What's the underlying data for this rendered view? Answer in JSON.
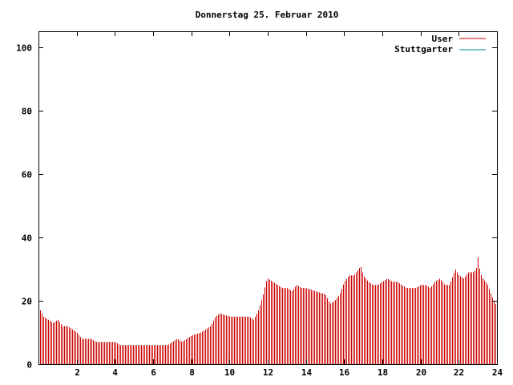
{
  "chart_data": {
    "type": "bar",
    "title": "Donnerstag 25. Februar 2010",
    "xlabel": "",
    "ylabel": "",
    "xlim": [
      0,
      24
    ],
    "ylim": [
      0,
      105
    ],
    "x_ticks": [
      2,
      4,
      6,
      8,
      10,
      12,
      14,
      16,
      18,
      20,
      22,
      24
    ],
    "x_tick_labels": [
      "2",
      "4",
      "6",
      "8",
      "10",
      "12",
      "14",
      "16",
      "18",
      "20",
      "22",
      "24"
    ],
    "y_ticks": [
      0,
      20,
      40,
      60,
      80,
      100
    ],
    "y_tick_labels": [
      "0",
      "20",
      "40",
      "60",
      "80",
      "100"
    ],
    "grid": false,
    "legend_position": "top-right",
    "series": [
      {
        "name": "User",
        "color": "#cc0000",
        "style": "impulses",
        "points": [
          [
            0.0,
            18
          ],
          [
            0.25,
            15
          ],
          [
            0.5,
            14
          ],
          [
            0.75,
            13
          ],
          [
            1.0,
            14
          ],
          [
            1.25,
            12
          ],
          [
            1.5,
            12
          ],
          [
            1.75,
            11
          ],
          [
            2.0,
            10
          ],
          [
            2.25,
            8
          ],
          [
            2.5,
            8
          ],
          [
            2.75,
            8
          ],
          [
            3.0,
            7
          ],
          [
            3.5,
            7
          ],
          [
            4.0,
            7
          ],
          [
            4.25,
            6
          ],
          [
            5.0,
            6
          ],
          [
            6.0,
            6
          ],
          [
            6.75,
            6
          ],
          [
            7.0,
            7
          ],
          [
            7.25,
            8
          ],
          [
            7.5,
            7
          ],
          [
            7.75,
            8
          ],
          [
            8.0,
            9
          ],
          [
            8.5,
            10
          ],
          [
            9.0,
            12
          ],
          [
            9.25,
            15
          ],
          [
            9.5,
            16
          ],
          [
            10.0,
            15
          ],
          [
            10.5,
            15
          ],
          [
            11.0,
            15
          ],
          [
            11.25,
            14
          ],
          [
            11.5,
            17
          ],
          [
            11.75,
            22
          ],
          [
            11.9,
            26
          ],
          [
            12.0,
            27
          ],
          [
            12.25,
            26
          ],
          [
            12.5,
            25
          ],
          [
            12.75,
            24
          ],
          [
            13.0,
            24
          ],
          [
            13.25,
            23
          ],
          [
            13.5,
            25
          ],
          [
            13.75,
            24
          ],
          [
            14.0,
            24
          ],
          [
            14.5,
            23
          ],
          [
            15.0,
            22
          ],
          [
            15.25,
            19
          ],
          [
            15.5,
            20
          ],
          [
            15.75,
            22
          ],
          [
            16.0,
            26
          ],
          [
            16.25,
            28
          ],
          [
            16.5,
            28
          ],
          [
            16.75,
            30
          ],
          [
            16.85,
            31
          ],
          [
            17.0,
            28
          ],
          [
            17.25,
            26
          ],
          [
            17.5,
            25
          ],
          [
            17.75,
            25
          ],
          [
            18.0,
            26
          ],
          [
            18.25,
            27
          ],
          [
            18.5,
            26
          ],
          [
            18.75,
            26
          ],
          [
            19.0,
            25
          ],
          [
            19.25,
            24
          ],
          [
            19.5,
            24
          ],
          [
            19.75,
            24
          ],
          [
            20.0,
            25
          ],
          [
            20.25,
            25
          ],
          [
            20.5,
            24
          ],
          [
            20.75,
            26
          ],
          [
            21.0,
            27
          ],
          [
            21.25,
            25
          ],
          [
            21.5,
            25
          ],
          [
            21.75,
            29
          ],
          [
            21.8,
            30
          ],
          [
            22.0,
            28
          ],
          [
            22.25,
            27
          ],
          [
            22.5,
            29
          ],
          [
            22.75,
            29
          ],
          [
            22.9,
            30
          ],
          [
            23.0,
            34
          ],
          [
            23.1,
            29
          ],
          [
            23.25,
            27
          ],
          [
            23.5,
            25
          ],
          [
            23.75,
            21
          ],
          [
            24.0,
            18
          ]
        ]
      },
      {
        "name": "Stuttgarter",
        "color": "#008b8b",
        "style": "impulses",
        "points": []
      }
    ]
  }
}
